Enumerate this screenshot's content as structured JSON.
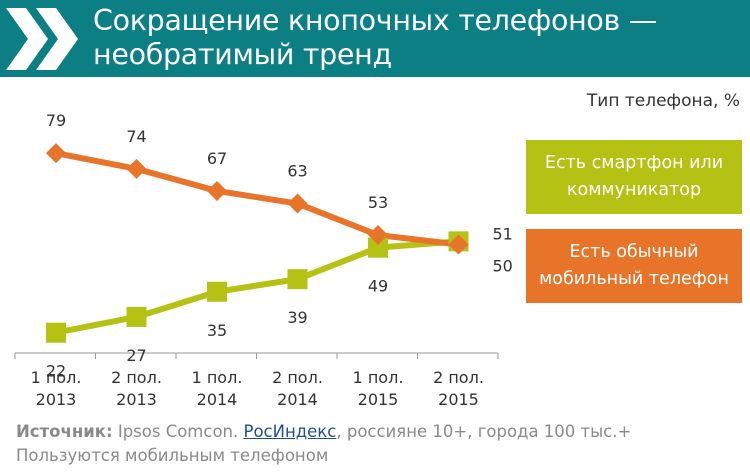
{
  "header": {
    "title_line1": "Сокращение кнопочных телефонов —",
    "title_line2": "необратимый тренд"
  },
  "chart_data": {
    "type": "line",
    "categories": [
      [
        "1 пол.",
        "2013"
      ],
      [
        "2 пол.",
        "2013"
      ],
      [
        "1 пол.",
        "2014"
      ],
      [
        "2 пол.",
        "2014"
      ],
      [
        "1 пол.",
        "2015"
      ],
      [
        "2 пол.",
        "2015"
      ]
    ],
    "ylim": [
      0,
      100
    ],
    "legend_title": "Тип телефона, %",
    "legend_placement": "right",
    "grid": false,
    "series": [
      {
        "name": "Есть смартфон или коммуникатор",
        "values": [
          22,
          27,
          35,
          39,
          49,
          51
        ],
        "color": "#b5c213",
        "marker": "square"
      },
      {
        "name": "Есть обычный мобильный телефон",
        "values": [
          79,
          74,
          67,
          63,
          53,
          50
        ],
        "color": "#e8742a",
        "marker": "diamond"
      }
    ]
  },
  "source": {
    "label": "Источник:",
    "text_before": " Ipsos Comcon. ",
    "link": "РосИндекс",
    "text_after": ", россияне 10+, города 100 тыс.+ Пользуются мобильным телефоном"
  },
  "colors": {
    "header_bg": "#0b7f83",
    "smartphone": "#b5c213",
    "feature_phone": "#e8742a"
  }
}
